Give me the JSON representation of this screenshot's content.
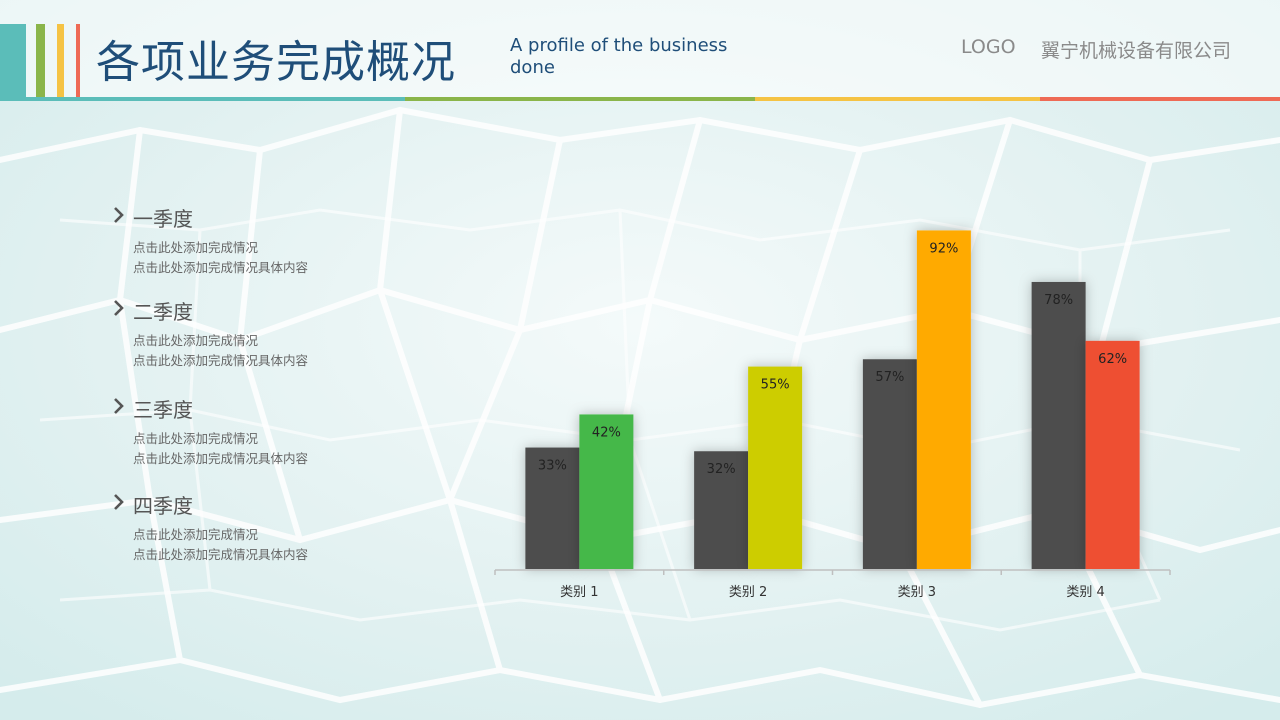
{
  "header": {
    "title": "各项业务完成概况",
    "subtitle": "A profile of the business done",
    "logo": "LOGO",
    "company": "翼宁机械设备有限公司"
  },
  "colors": {
    "teal": "#5bbdb9",
    "green": "#8ab54a",
    "yellow": "#f5c344",
    "red": "#ee6a55",
    "series1": "#4d4d4d",
    "category_colors": [
      "#45b84a",
      "#cdcd00",
      "#ffaa00",
      "#ee5033"
    ]
  },
  "quarters": [
    {
      "title": "一季度",
      "lines": [
        "点击此处添加完成情况",
        "点击此处添加完成情况具体内容"
      ]
    },
    {
      "title": "二季度",
      "lines": [
        "点击此处添加完成情况",
        "点击此处添加完成情况具体内容"
      ]
    },
    {
      "title": "三季度",
      "lines": [
        "点击此处添加完成情况",
        "点击此处添加完成情况具体内容"
      ]
    },
    {
      "title": "四季度",
      "lines": [
        "点击此处添加完成情况",
        "点击此处添加完成情况具体内容"
      ]
    }
  ],
  "chart_data": {
    "type": "bar",
    "categories": [
      "类别 1",
      "类别 2",
      "类别 3",
      "类别 4"
    ],
    "series": [
      {
        "values": [
          33,
          32,
          57,
          78
        ],
        "labels": [
          "33%",
          "32%",
          "57%",
          "78%"
        ]
      },
      {
        "values": [
          42,
          55,
          92,
          62
        ],
        "labels": [
          "42%",
          "55%",
          "92%",
          "62%"
        ]
      }
    ],
    "ylim": [
      0,
      100
    ],
    "unit": "%",
    "grid": false,
    "legend": "none"
  }
}
